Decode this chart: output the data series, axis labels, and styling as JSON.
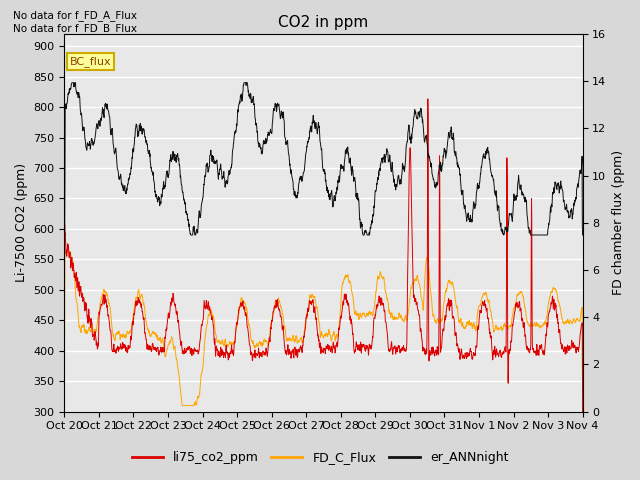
{
  "title": "CO2 in ppm",
  "ylabel_left": "Li-7500 CO2 (ppm)",
  "ylabel_right": "FD chamber flux (ppm)",
  "ylim_left": [
    300,
    920
  ],
  "ylim_right": [
    0,
    16
  ],
  "yticks_left": [
    300,
    350,
    400,
    450,
    500,
    550,
    600,
    650,
    700,
    750,
    800,
    850,
    900
  ],
  "yticks_right": [
    0,
    2,
    4,
    6,
    8,
    10,
    12,
    14,
    16
  ],
  "xtick_labels": [
    "Oct 20",
    "Oct 21",
    "Oct 22",
    "Oct 23",
    "Oct 24",
    "Oct 25",
    "Oct 26",
    "Oct 27",
    "Oct 28",
    "Oct 29",
    "Oct 30",
    "Oct 31",
    "Nov 1",
    "Nov 2",
    "Nov 3",
    "Nov 4"
  ],
  "n_points": 2000,
  "color_li75": "#dd0000",
  "color_fd": "#ffa500",
  "color_ann": "#111111",
  "legend_labels": [
    "li75_co2_ppm",
    "FD_C_Flux",
    "er_ANNnight"
  ],
  "legend_colors": [
    "#dd0000",
    "#ffa500",
    "#111111"
  ],
  "note1": "No data for f_FD_A_Flux",
  "note2": "No data for f_FD_B_Flux",
  "bc_flux_label": "BC_flux",
  "bc_flux_facecolor": "#ffff99",
  "bc_flux_edgecolor": "#ccaa00",
  "plot_bg": "#e8e8e8",
  "fig_bg": "#d8d8d8",
  "grid_color": "#ffffff",
  "title_fontsize": 11,
  "label_fontsize": 9,
  "tick_fontsize": 8,
  "linewidth": 0.7,
  "n_days": 15
}
